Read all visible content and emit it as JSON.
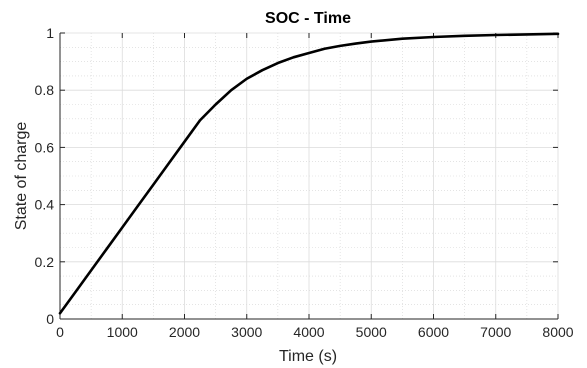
{
  "chart_data": {
    "type": "line",
    "title": "SOC - Time",
    "xlabel": "Time (s)",
    "ylabel": "State of charge",
    "xlim": [
      0,
      8000
    ],
    "ylim": [
      0,
      1
    ],
    "xticks": [
      0,
      1000,
      2000,
      3000,
      4000,
      5000,
      6000,
      7000,
      8000
    ],
    "yticks": [
      0,
      0.2,
      0.4,
      0.6,
      0.8,
      1
    ],
    "xtick_labels": [
      "0",
      "1000",
      "2000",
      "3000",
      "4000",
      "5000",
      "6000",
      "7000",
      "8000"
    ],
    "ytick_labels": [
      "0",
      "0.2",
      "0.4",
      "0.6",
      "0.8",
      "1"
    ],
    "grid": true,
    "minor_grid": true,
    "legend": "none",
    "series": [
      {
        "color": "#000000",
        "x": [
          0,
          250,
          500,
          750,
          1000,
          1250,
          1500,
          1750,
          2000,
          2250,
          2500,
          2750,
          3000,
          3250,
          3500,
          3750,
          4000,
          4250,
          4500,
          4750,
          5000,
          5500,
          6000,
          6500,
          7000,
          7500,
          8000
        ],
        "y": [
          0.02,
          0.095,
          0.17,
          0.245,
          0.32,
          0.395,
          0.47,
          0.545,
          0.62,
          0.695,
          0.75,
          0.8,
          0.84,
          0.87,
          0.895,
          0.915,
          0.93,
          0.945,
          0.955,
          0.963,
          0.97,
          0.98,
          0.986,
          0.99,
          0.993,
          0.995,
          0.997
        ]
      }
    ]
  }
}
